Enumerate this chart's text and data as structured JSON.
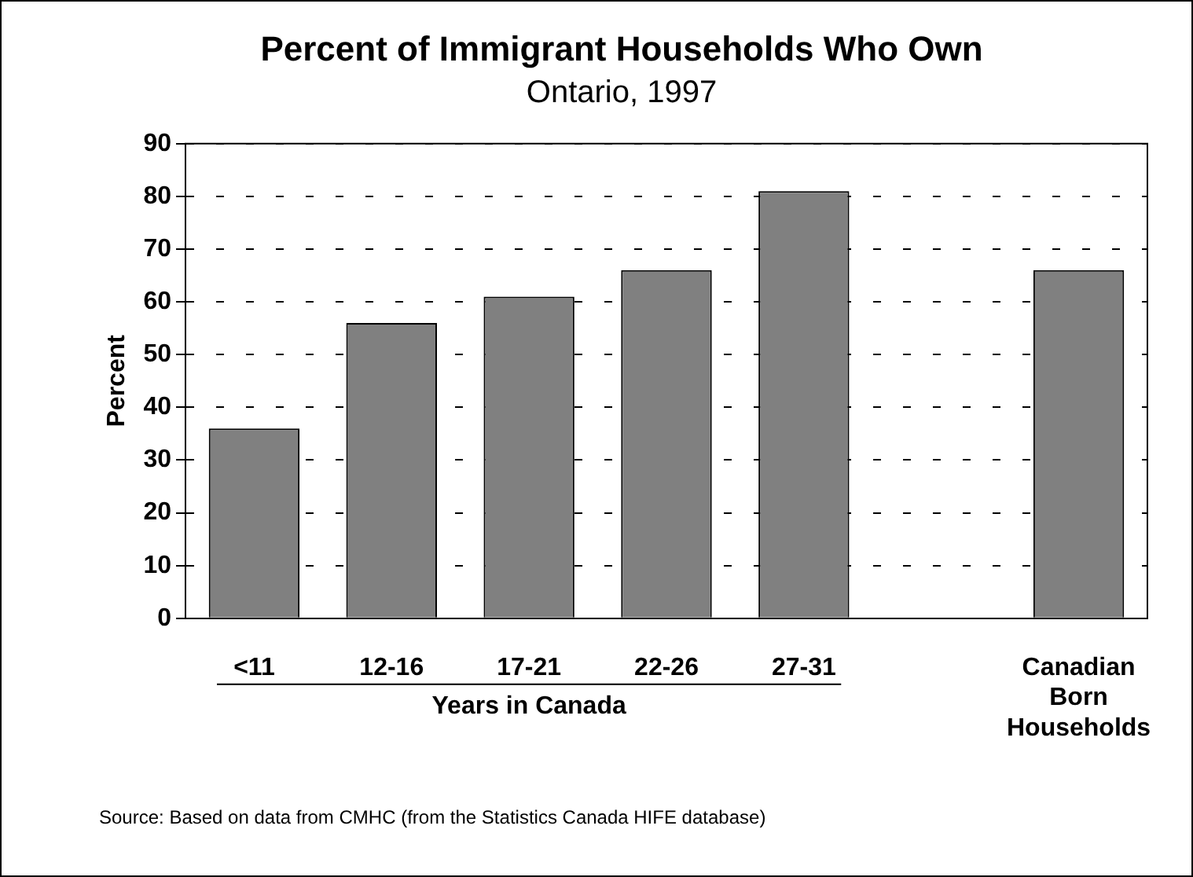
{
  "chart_data": {
    "type": "bar",
    "title": "Percent of Immigrant Households Who Own",
    "subtitle": "Ontario, 1997",
    "categories": [
      "<11",
      "12-16",
      "17-21",
      "22-26",
      "27-31",
      null,
      "Canadian Born Households"
    ],
    "values": [
      36,
      56,
      61,
      66,
      81,
      null,
      66
    ],
    "color": "#808080",
    "ylabel": "Percent",
    "xlabel": "Years in Canada",
    "ylim": [
      0,
      90
    ],
    "yticks": [
      0,
      10,
      20,
      30,
      40,
      50,
      60,
      70,
      80,
      90
    ],
    "grid": "y",
    "annotations": [
      "Source:  Based on data from CMHC (from the Statistics Canada HIFE database)"
    ]
  }
}
